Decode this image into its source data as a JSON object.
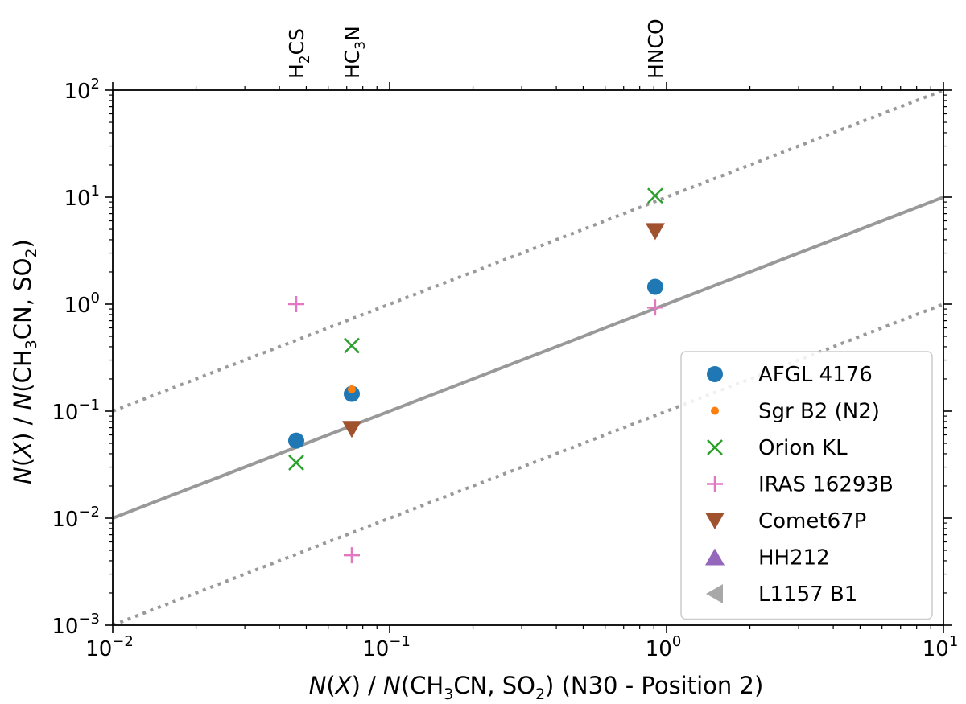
{
  "chart_data": {
    "type": "scatter",
    "xscale": "log",
    "yscale": "log",
    "xlim": [
      0.01,
      10
    ],
    "ylim": [
      0.001,
      100
    ],
    "xticks": [
      {
        "value": 0.01,
        "base": "10",
        "exp": "−2"
      },
      {
        "value": 0.1,
        "base": "10",
        "exp": "−1"
      },
      {
        "value": 1,
        "base": "10",
        "exp": "0"
      },
      {
        "value": 10,
        "base": "10",
        "exp": "1"
      }
    ],
    "yticks": [
      {
        "value": 0.001,
        "base": "10",
        "exp": "−3"
      },
      {
        "value": 0.01,
        "base": "10",
        "exp": "−2"
      },
      {
        "value": 0.1,
        "base": "10",
        "exp": "−1"
      },
      {
        "value": 1,
        "base": "10",
        "exp": "0"
      },
      {
        "value": 10,
        "base": "10",
        "exp": "1"
      },
      {
        "value": 100,
        "base": "10",
        "exp": "2"
      }
    ],
    "xlabel": {
      "pre": "N",
      "mid1": "(",
      "var": "X",
      "mid2": ") / ",
      "pre2": "N",
      "rest": "(CH",
      "sub1": "3",
      "rest2": "CN, SO",
      "sub2": "2",
      "rest3": ") (N30 - Position 2)"
    },
    "ylabel": {
      "pre": "N",
      "mid1": "(",
      "var": "X",
      "mid2": ") / ",
      "pre2": "N",
      "rest": "(CH",
      "sub1": "3",
      "rest2": "CN, SO",
      "sub2": "2",
      "rest3": ")"
    },
    "molecules": [
      {
        "x": 0.046,
        "base": "H",
        "sub": "2",
        "rest": "CS"
      },
      {
        "x": 0.073,
        "base": "HC",
        "sub": "3",
        "rest": "N"
      },
      {
        "x": 0.91,
        "base": "HNCO",
        "sub": "",
        "rest": ""
      }
    ],
    "reference_lines": [
      {
        "label": "y = x",
        "factor": 1,
        "style": "solid",
        "color": "#999999"
      },
      {
        "label": "y = 10x",
        "factor": 10,
        "style": "dotted",
        "color": "#999999"
      },
      {
        "label": "y = 0.1x",
        "factor": 0.1,
        "style": "dotted",
        "color": "#999999"
      }
    ],
    "series": [
      {
        "name": "AFGL 4176",
        "marker": "circle",
        "color": "#1f77b4",
        "points": [
          [
            0.046,
            0.053
          ],
          [
            0.073,
            0.145
          ],
          [
            0.91,
            1.45
          ]
        ]
      },
      {
        "name": "Sgr B2 (N2)",
        "marker": "small-circle",
        "color": "#ff7f0e",
        "points": [
          [
            0.073,
            0.16
          ]
        ]
      },
      {
        "name": "Orion KL",
        "marker": "x",
        "color": "#2ca02c",
        "points": [
          [
            0.046,
            0.033
          ],
          [
            0.073,
            0.41
          ],
          [
            0.91,
            10.3
          ]
        ]
      },
      {
        "name": "IRAS 16293B",
        "marker": "plus",
        "color": "#e377c2",
        "points": [
          [
            0.046,
            1.0
          ],
          [
            0.073,
            0.0045
          ],
          [
            0.91,
            0.93
          ]
        ]
      },
      {
        "name": "Comet67P",
        "marker": "triangle-down",
        "color": "#a0522d",
        "points": [
          [
            0.073,
            0.068
          ],
          [
            0.91,
            4.8
          ]
        ]
      },
      {
        "name": "HH212",
        "marker": "triangle-up",
        "color": "#9467bd",
        "points": []
      },
      {
        "name": "L1157 B1",
        "marker": "triangle-left",
        "color": "#a8a8a8",
        "points": []
      }
    ],
    "legend_position": "lower-right"
  }
}
